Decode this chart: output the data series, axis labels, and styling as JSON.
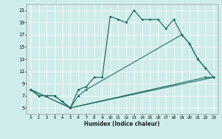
{
  "xlabel": "Humidex (Indice chaleur)",
  "bg_color": "#cdecea",
  "line_color": "#1a6b60",
  "grid_color": "#b8d8d5",
  "xlim": [
    -0.5,
    23.5
  ],
  "ylim": [
    4,
    22
  ],
  "xticks": [
    0,
    1,
    2,
    3,
    4,
    5,
    6,
    7,
    8,
    9,
    10,
    11,
    12,
    13,
    14,
    15,
    16,
    17,
    18,
    19,
    20,
    21,
    22,
    23
  ],
  "yticks": [
    5,
    7,
    9,
    11,
    13,
    15,
    17,
    19,
    21
  ],
  "line1_x": [
    0,
    1,
    2,
    3,
    4,
    5,
    6,
    7,
    8,
    9,
    10,
    11,
    12,
    13,
    14,
    15,
    16,
    17,
    18,
    19,
    20,
    21,
    22
  ],
  "line1_y": [
    8,
    7,
    7,
    7,
    6,
    5,
    8,
    8.5,
    10,
    10,
    20,
    19.5,
    19,
    21,
    19.5,
    19.5,
    19.5,
    18,
    19.5,
    17,
    15.5,
    13,
    11.5
  ],
  "line2_x": [
    0,
    1,
    2,
    3,
    4,
    5,
    22,
    23
  ],
  "line2_y": [
    8,
    7,
    7,
    7,
    6,
    5,
    10,
    10
  ],
  "line3_x": [
    0,
    5,
    23
  ],
  "line3_y": [
    8,
    5,
    10
  ],
  "line4_x": [
    0,
    5,
    6,
    7,
    19,
    20,
    21,
    22,
    23
  ],
  "line4_y": [
    8,
    5,
    7,
    8,
    17,
    15.5,
    13,
    11.5,
    10
  ]
}
